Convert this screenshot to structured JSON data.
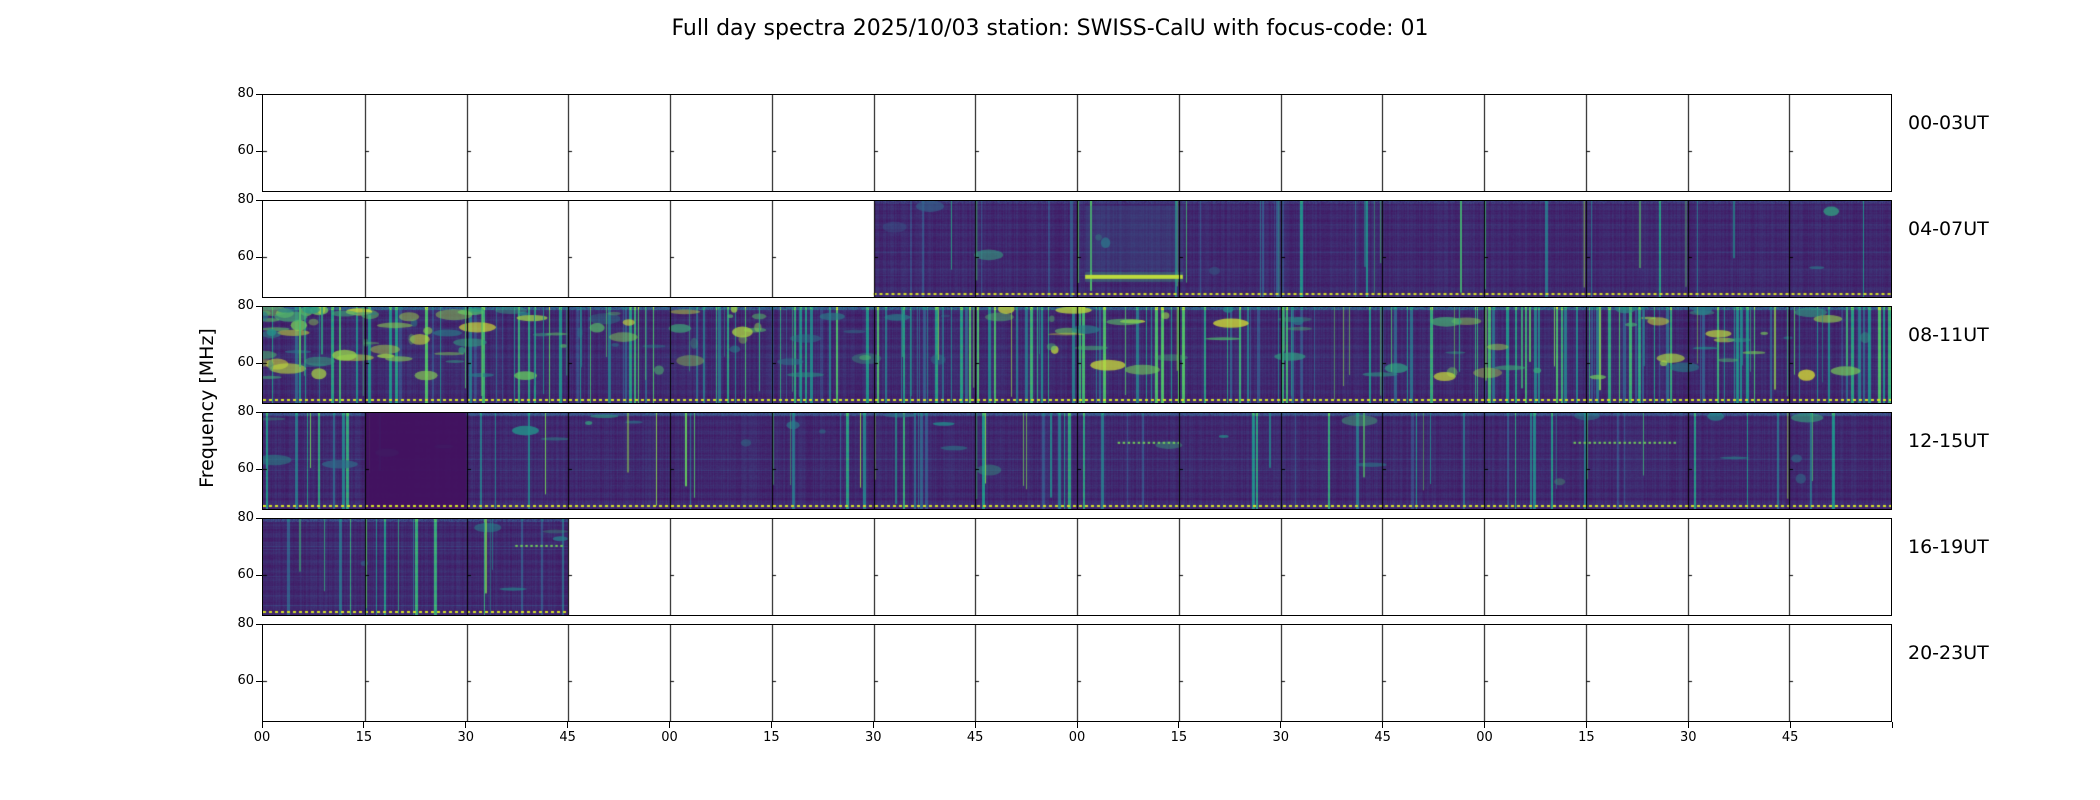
{
  "figure": {
    "title": "Full day spectra 2025/10/03 station: SWISS-CalU with focus-code: 01",
    "ylabel": "Frequency [MHz]"
  },
  "chart_data": {
    "type": "heatmap",
    "title": "Full day spectra 2025/10/03 station: SWISS-CalU with focus-code: 01",
    "ylabel": "Frequency [MHz]",
    "colormap": "viridis",
    "y_ticks": [
      "80",
      "60"
    ],
    "y_range_mhz": [
      46,
      80
    ],
    "x_tick_labels": [
      "00",
      "15",
      "30",
      "45",
      "00",
      "15",
      "30",
      "45",
      "00",
      "15",
      "30",
      "45",
      "00",
      "15",
      "30",
      "45"
    ],
    "panels_per_row": 16,
    "minutes_per_panel": 15,
    "dashed_baseline_color": "#d5e225",
    "rows": [
      {
        "label": "00-03UT",
        "coverage": [],
        "activity": "none",
        "features": []
      },
      {
        "label": "04-07UT",
        "coverage": [
          [
            0.375,
            1.0
          ]
        ],
        "activity": "low",
        "features": [
          {
            "type": "rect",
            "x0": 0.505,
            "x1": 0.565,
            "y0": 0.05,
            "y1": 0.72,
            "v": 0.32,
            "a": 0.25
          },
          {
            "type": "band",
            "x0": 0.505,
            "x1": 0.565,
            "y0": 0.72,
            "y1": 0.86,
            "v": 0.9
          }
        ]
      },
      {
        "label": "08-11UT",
        "coverage": [
          [
            0.0,
            1.0
          ]
        ],
        "activity": "high",
        "features": []
      },
      {
        "label": "12-15UT",
        "coverage": [
          [
            0.0,
            1.0
          ]
        ],
        "activity": "medium",
        "features": [
          {
            "type": "rect",
            "x0": 0.0625,
            "x1": 0.125,
            "y0": 0.0,
            "y1": 1.0,
            "v": 0.05,
            "a": 0.92
          },
          {
            "type": "dots",
            "x0": 0.525,
            "x1": 0.562,
            "y": 0.3
          },
          {
            "type": "dots",
            "x0": 0.805,
            "x1": 0.868,
            "y": 0.3
          }
        ]
      },
      {
        "label": "16-19UT",
        "coverage": [
          [
            0.0,
            0.1875
          ]
        ],
        "activity": "medium",
        "features": [
          {
            "type": "dots",
            "x0": 0.155,
            "x1": 0.185,
            "y": 0.27
          }
        ]
      },
      {
        "label": "20-23UT",
        "coverage": [],
        "activity": "none",
        "features": []
      }
    ]
  }
}
